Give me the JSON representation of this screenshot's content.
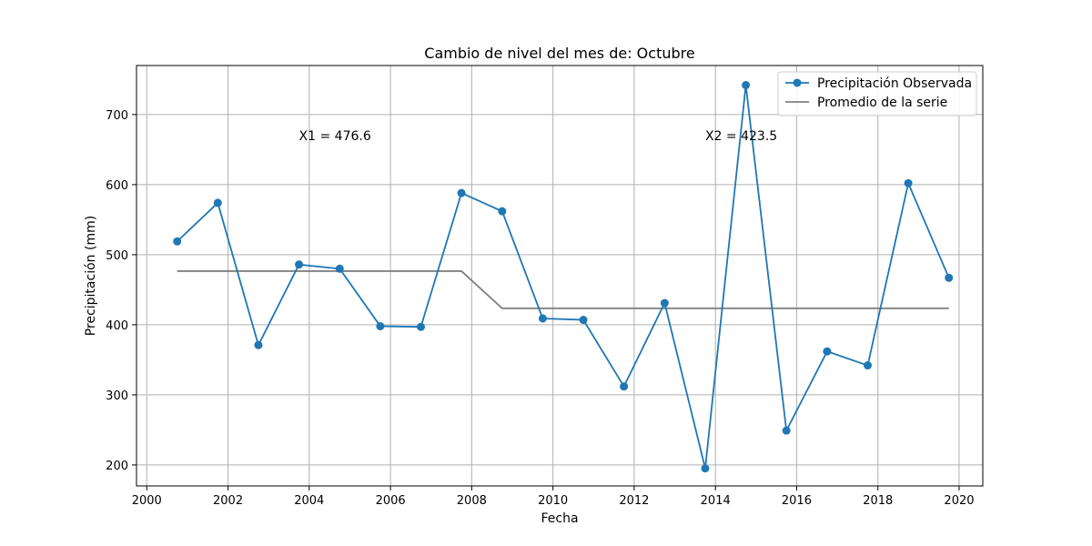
{
  "chart_data": {
    "type": "line",
    "title": "Cambio de nivel del mes de: Octubre",
    "xlabel": "Fecha",
    "ylabel": "Precipitación (mm)",
    "xlim": [
      "1999-10-01",
      "2020-08-01"
    ],
    "ylim": [
      170,
      770
    ],
    "x_ticks": [
      2000,
      2002,
      2004,
      2006,
      2008,
      2010,
      2012,
      2014,
      2016,
      2018,
      2020
    ],
    "y_ticks": [
      200,
      300,
      400,
      500,
      600,
      700
    ],
    "grid": true,
    "legend_position": "top-right",
    "series": [
      {
        "name": "Precipitación Observada",
        "color": "#1f77b4",
        "marker": "circle",
        "x": [
          "2000-10-01",
          "2001-10-01",
          "2002-10-01",
          "2003-10-01",
          "2004-10-01",
          "2005-10-01",
          "2006-10-01",
          "2007-10-01",
          "2008-10-01",
          "2009-10-01",
          "2010-10-01",
          "2011-10-01",
          "2012-10-01",
          "2013-10-01",
          "2014-10-01",
          "2015-10-01",
          "2016-10-01",
          "2017-10-01",
          "2018-10-01",
          "2019-10-01"
        ],
        "values": [
          519,
          574,
          371,
          486,
          480,
          398,
          397,
          588,
          562,
          409,
          407,
          312,
          431,
          195,
          742,
          249,
          362,
          342,
          602,
          467
        ]
      },
      {
        "name": "Promedio de la serie",
        "color": "#808080",
        "marker": "none",
        "x": [
          "2000-10-01",
          "2001-10-01",
          "2002-10-01",
          "2003-10-01",
          "2004-10-01",
          "2005-10-01",
          "2006-10-01",
          "2007-10-01",
          "2008-10-01",
          "2009-10-01",
          "2010-10-01",
          "2011-10-01",
          "2012-10-01",
          "2013-10-01",
          "2014-10-01",
          "2015-10-01",
          "2016-10-01",
          "2017-10-01",
          "2018-10-01",
          "2019-10-01"
        ],
        "values": [
          476.6,
          476.6,
          476.6,
          476.6,
          476.6,
          476.6,
          476.6,
          476.6,
          423.5,
          423.5,
          423.5,
          423.5,
          423.5,
          423.5,
          423.5,
          423.5,
          423.5,
          423.5,
          423.5,
          423.5
        ]
      }
    ],
    "annotations": [
      {
        "text": "X1 = 476.6",
        "x": "2003-10-01",
        "y": 670
      },
      {
        "text": "X2 = 423.5",
        "x": "2013-10-01",
        "y": 670
      }
    ]
  }
}
